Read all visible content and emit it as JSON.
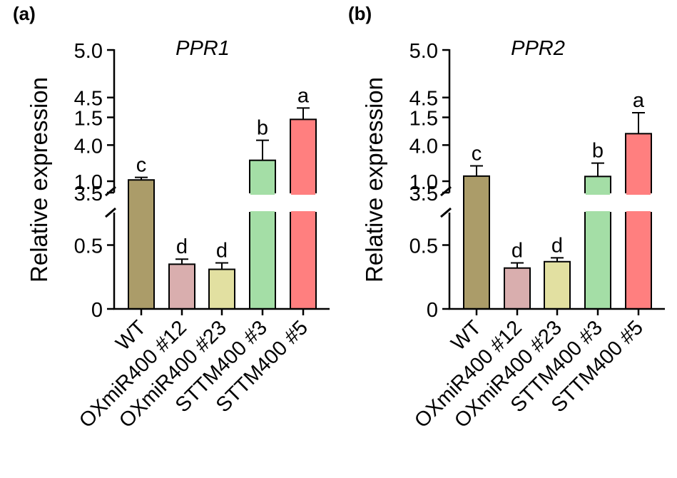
{
  "chart_data": [
    {
      "type": "bar",
      "panel_label": "(a)",
      "title": "PPR1",
      "ylabel": "Relative expression",
      "xlabel": "",
      "categories": [
        "WT",
        "OXmiR400 #12",
        "OXmiR400 #23",
        "STTM400 #3",
        "STTM400 #5"
      ],
      "values": [
        1.01,
        0.35,
        0.31,
        3.84,
        4.27
      ],
      "errors": [
        0.02,
        0.04,
        0.05,
        0.21,
        0.12
      ],
      "significance": [
        "c",
        "d",
        "d",
        "b",
        "a"
      ],
      "colors": [
        "#ab9c69",
        "#d9aeae",
        "#e2e0a1",
        "#a4dea6",
        "#ff7f7f"
      ],
      "y_axis_break": {
        "lower_range": [
          0,
          1.5
        ],
        "upper_range": [
          3.5,
          5.0
        ]
      },
      "lower_ticks": [
        "0",
        "0.5",
        "1.0",
        "1.5"
      ],
      "upper_ticks": [
        "3.5",
        "4.0",
        "4.5",
        "5.0"
      ]
    },
    {
      "type": "bar",
      "panel_label": "(b)",
      "title": "PPR2",
      "ylabel": "Relative expression",
      "xlabel": "",
      "categories": [
        "WT",
        "OXmiR400 #12",
        "OXmiR400 #23",
        "STTM400 #3",
        "STTM400 #5"
      ],
      "values": [
        1.04,
        0.32,
        0.37,
        3.67,
        4.12
      ],
      "errors": [
        0.08,
        0.04,
        0.03,
        0.14,
        0.22
      ],
      "significance": [
        "c",
        "d",
        "d",
        "b",
        "a"
      ],
      "colors": [
        "#ab9c69",
        "#d9aeae",
        "#e2e0a1",
        "#a4dea6",
        "#ff7f7f"
      ],
      "y_axis_break": {
        "lower_range": [
          0,
          1.5
        ],
        "upper_range": [
          3.5,
          5.0
        ]
      },
      "lower_ticks": [
        "0",
        "0.5",
        "1.0",
        "1.5"
      ],
      "upper_ticks": [
        "3.5",
        "4.0",
        "4.5",
        "5.0"
      ]
    }
  ]
}
